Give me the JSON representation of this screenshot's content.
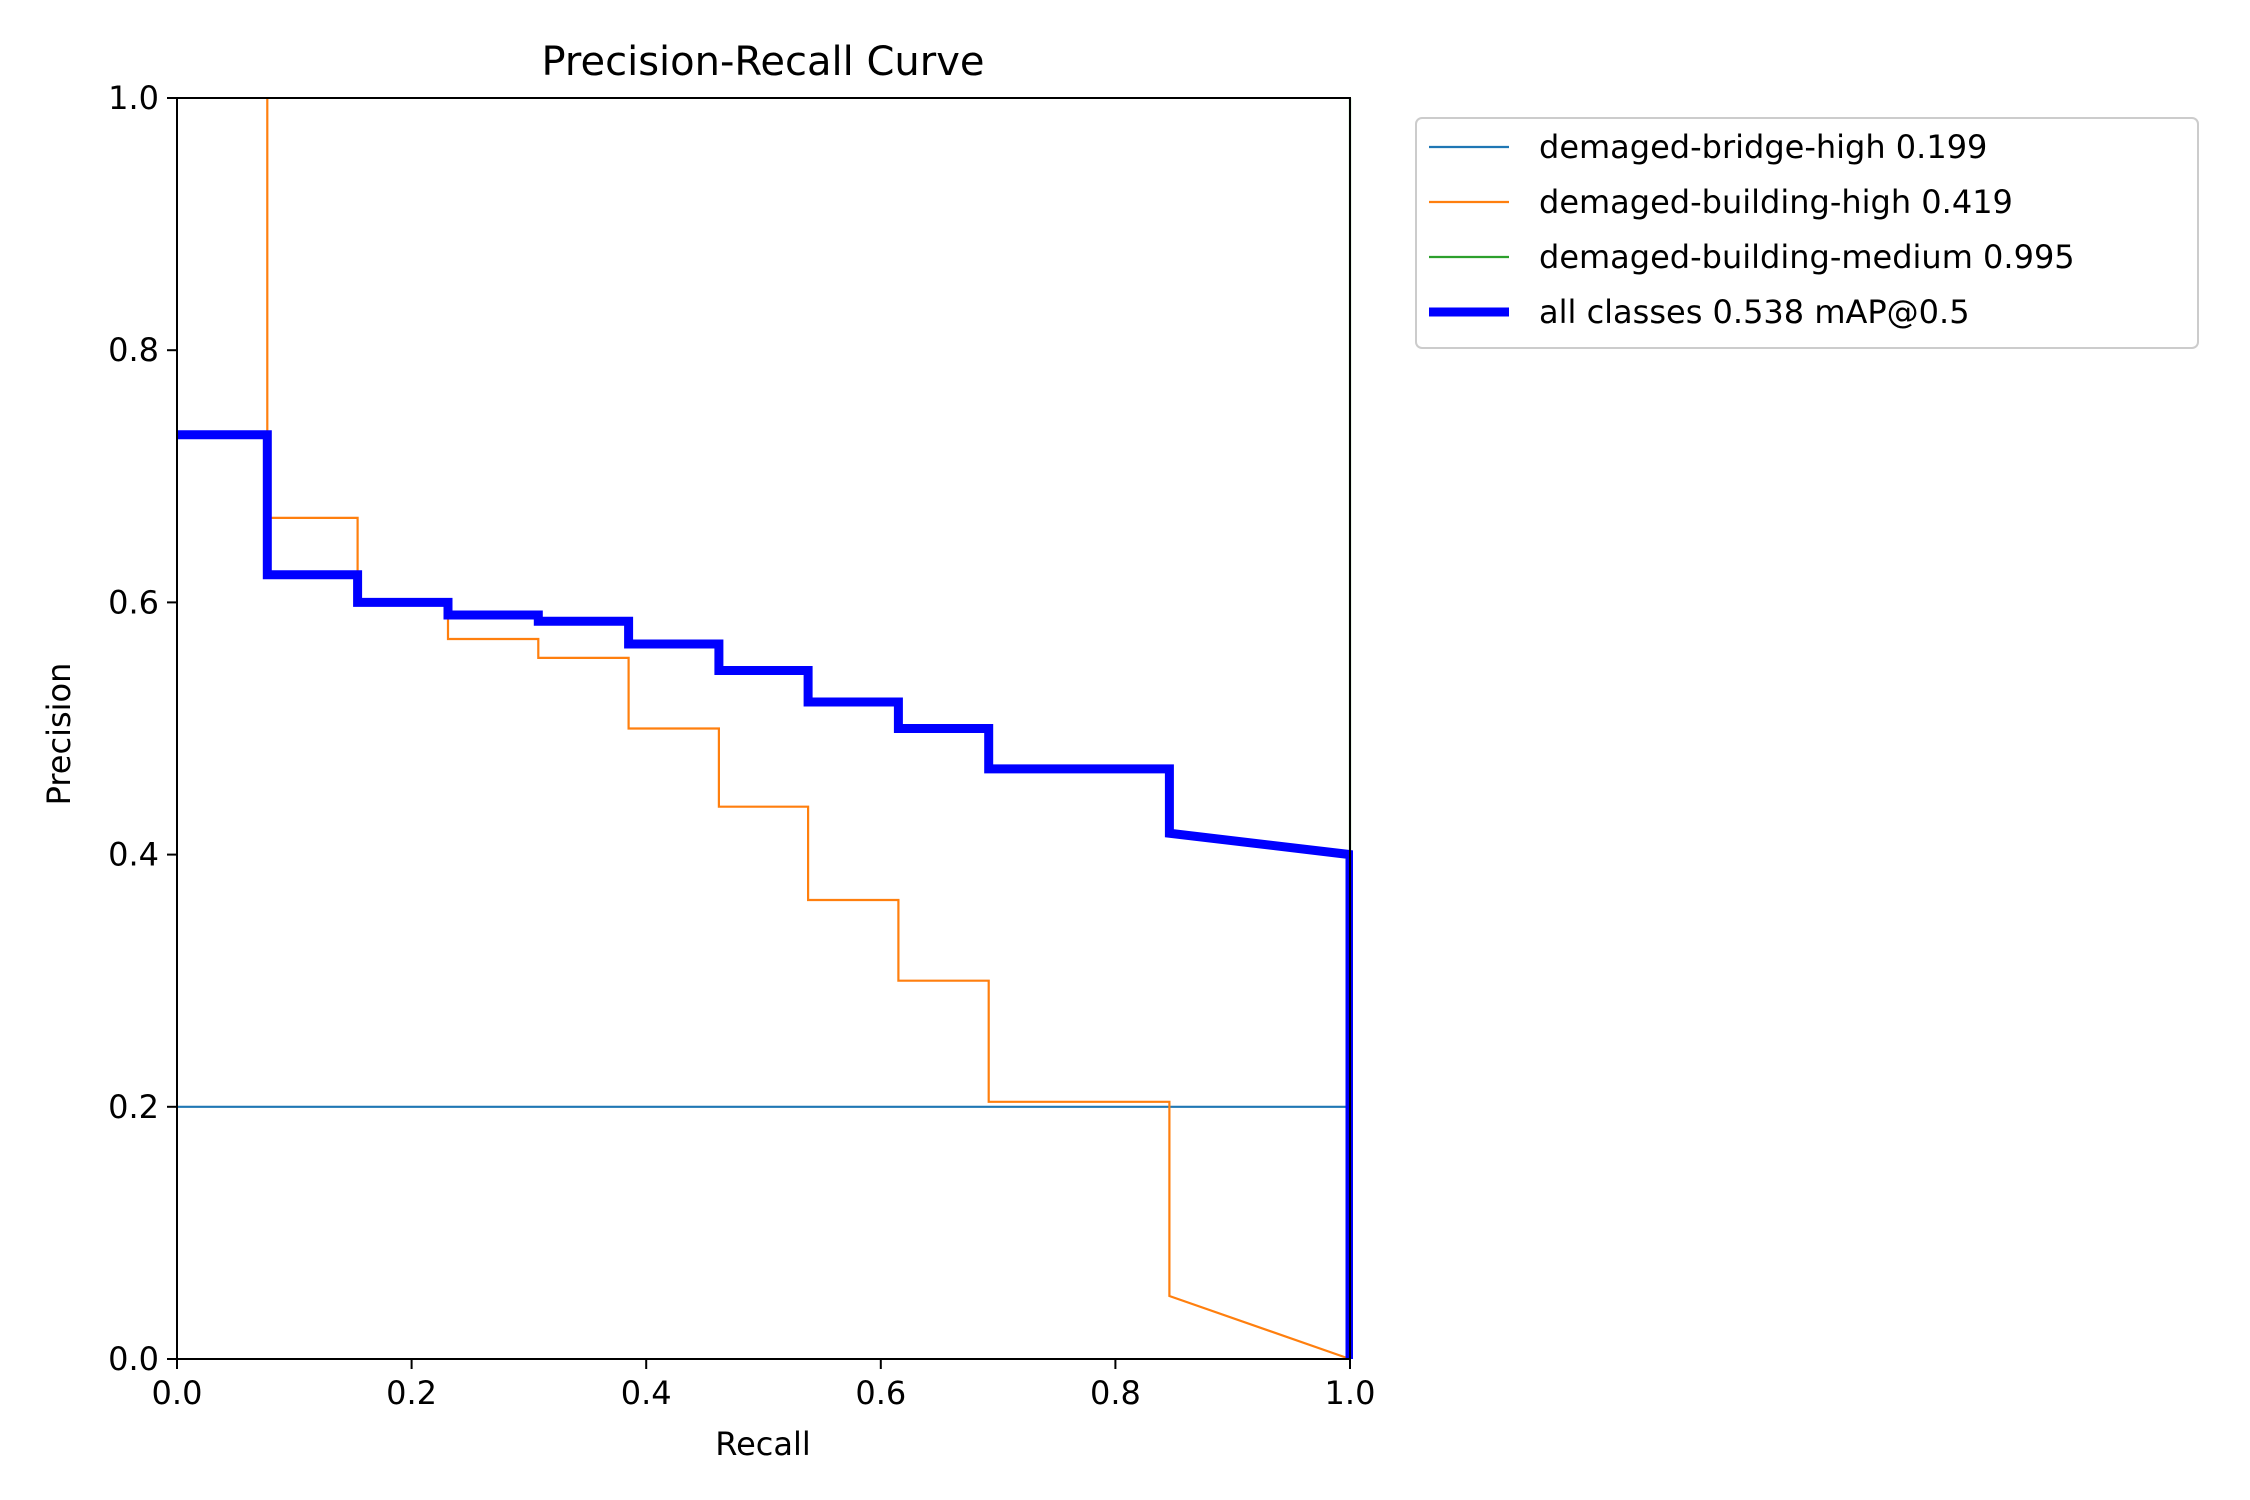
{
  "chart_data": {
    "type": "line",
    "title": "Precision-Recall Curve",
    "xlabel": "Recall",
    "ylabel": "Precision",
    "xlim": [
      0,
      1
    ],
    "ylim": [
      0,
      1
    ],
    "grid": false,
    "legend_position": "outside-top-right",
    "x_ticks": [
      "0.0",
      "0.2",
      "0.4",
      "0.6",
      "0.8",
      "1.0"
    ],
    "y_ticks": [
      "0.0",
      "0.2",
      "0.4",
      "0.6",
      "0.8",
      "1.0"
    ],
    "series": [
      {
        "name": "demaged-bridge-high 0.199",
        "color": "#1f77b4",
        "line_weight": "thin",
        "points": [
          [
            0,
            0.2
          ],
          [
            1.0,
            0.2
          ],
          [
            1.0,
            0.0
          ]
        ]
      },
      {
        "name": "demaged-building-high 0.419",
        "color": "#ff7f0e",
        "line_weight": "thin",
        "points": [
          [
            0.077,
            1.0
          ],
          [
            0.077,
            0.667
          ],
          [
            0.154,
            0.667
          ],
          [
            0.154,
            0.6
          ],
          [
            0.231,
            0.6
          ],
          [
            0.231,
            0.571
          ],
          [
            0.308,
            0.571
          ],
          [
            0.308,
            0.556
          ],
          [
            0.385,
            0.556
          ],
          [
            0.385,
            0.5
          ],
          [
            0.462,
            0.5
          ],
          [
            0.462,
            0.438
          ],
          [
            0.538,
            0.438
          ],
          [
            0.538,
            0.364
          ],
          [
            0.615,
            0.364
          ],
          [
            0.615,
            0.3
          ],
          [
            0.692,
            0.3
          ],
          [
            0.692,
            0.204
          ],
          [
            0.846,
            0.204
          ],
          [
            0.846,
            0.05
          ],
          [
            1.0,
            0.0
          ]
        ]
      },
      {
        "name": "demaged-building-medium 0.995",
        "color": "#2ca02c",
        "line_weight": "thin",
        "points": [
          [
            1.0,
            1.0
          ],
          [
            1.0,
            0.0
          ]
        ]
      },
      {
        "name": "all classes 0.538 mAP@0.5",
        "color": "#0000ff",
        "line_weight": "thick",
        "points": [
          [
            0,
            0.733
          ],
          [
            0.077,
            0.733
          ],
          [
            0.077,
            0.622
          ],
          [
            0.154,
            0.622
          ],
          [
            0.154,
            0.6
          ],
          [
            0.231,
            0.6
          ],
          [
            0.231,
            0.59
          ],
          [
            0.308,
            0.59
          ],
          [
            0.308,
            0.585
          ],
          [
            0.385,
            0.585
          ],
          [
            0.385,
            0.567
          ],
          [
            0.462,
            0.567
          ],
          [
            0.462,
            0.546
          ],
          [
            0.538,
            0.546
          ],
          [
            0.538,
            0.521
          ],
          [
            0.615,
            0.521
          ],
          [
            0.615,
            0.5
          ],
          [
            0.692,
            0.5
          ],
          [
            0.692,
            0.468
          ],
          [
            0.846,
            0.468
          ],
          [
            0.846,
            0.417
          ],
          [
            1.0,
            0.4
          ],
          [
            1.0,
            0.0
          ]
        ]
      }
    ]
  }
}
